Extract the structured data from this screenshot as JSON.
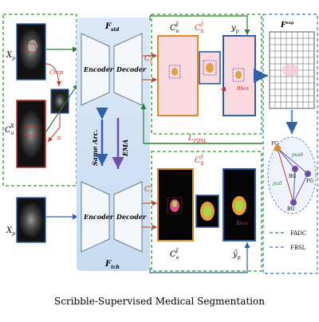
{
  "caption": "Scribble-Supervised Medical Segmentation",
  "inputs": {
    "top_input": "X",
    "top_input_sub": "p",
    "mid_input": "C",
    "mid_input_sub": "o",
    "mid_input_sup": "X",
    "bottom_input": "X",
    "bottom_input_sub": "p"
  },
  "crop_label": "Crop",
  "paste_label": "⊙",
  "student": {
    "encoder": "Encoder",
    "decoder": "Decoder",
    "name": "F",
    "name_sub": "std"
  },
  "teacher": {
    "encoder": "Encoder",
    "decoder": "Decoder",
    "name": "F",
    "name_sub": "tch"
  },
  "arrows": {
    "same_arch": "Same Arc.",
    "ema": "EMA"
  },
  "top_row": {
    "pred_left": "C",
    "pred_left_sub": "o",
    "pred_left_sup": "ŷ",
    "pred_mid": "C",
    "pred_mid_sub": "b",
    "pred_mid_sup": "ŷ",
    "pred_right": "y",
    "pred_right_sub": "p",
    "side_label": "C",
    "side_label_sub": "b",
    "side_label_sup": "ŷ",
    "bbox_label": "Bbox"
  },
  "loss_label": "L",
  "loss_sub": "FBSL",
  "bottom_row": {
    "pred_left": "C",
    "pred_left_sub": "o",
    "pred_left_sup": "ŷ",
    "pred_top": "C",
    "pred_top_sub": "b",
    "pred_top_sup": "ŷ",
    "pred_right": "ŷ",
    "pred_right_sub": "p",
    "side_label": "C",
    "side_label_sub": "b",
    "side_label_sup": "ŷ",
    "bbox_label": "Bbox"
  },
  "feature": {
    "label": "F",
    "label_sup": "sup"
  },
  "graph": {
    "fg1": "FG",
    "fg2": "FG",
    "bg1": "BG",
    "bg2": "BG",
    "push": "push",
    "pull": "pull"
  },
  "legend": {
    "fadc": "FADC",
    "fbsl": "FBSL"
  },
  "colors": {
    "green_dash": "#4caf50",
    "blue_dash": "#5b8fd6",
    "orange": "#d98a2b",
    "red": "#c0392b",
    "blue_box": "#2f5fa6"
  }
}
